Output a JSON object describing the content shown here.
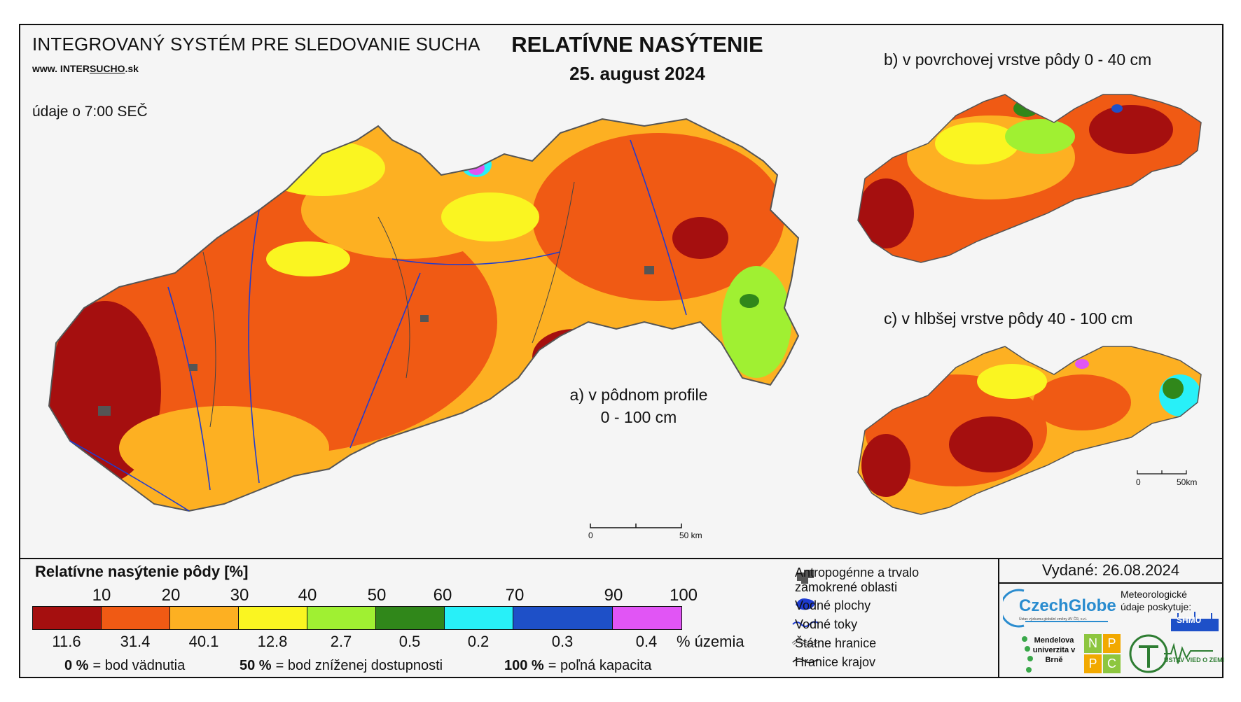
{
  "header": {
    "system_title": "INTEGROVANÝ SYSTÉM PRE SLEDOVANIE SUCHA",
    "website_prefix": "www. INTER",
    "website_mid": "SUCHO",
    "website_suffix": ".sk",
    "observation_time": "údaje o 7:00 SEČ",
    "main_title": "RELATÍVNE NASÝTENIE",
    "date": "25. august 2024"
  },
  "maps": {
    "a_label_line1": "a) v pôdnom profile",
    "a_label_line2": "0 - 100 cm",
    "b_label": "b) v povrchovej vrstve pôdy 0 - 40 cm",
    "c_label": "c) v hlbšej vrstve pôdy 40 - 100 cm",
    "scale_main": {
      "zero": "0",
      "fifty": "50 km"
    },
    "scale_small": {
      "zero": "0",
      "fifty": "50km"
    }
  },
  "legend": {
    "title": "Relatívne nasýtenie pôdy [%]",
    "ticks": [
      "10",
      "20",
      "30",
      "40",
      "50",
      "60",
      "70",
      "90",
      "100"
    ],
    "classes": [
      {
        "color": "#a50f0f",
        "percent": "11.6"
      },
      {
        "color": "#f05a14",
        "percent": "31.4"
      },
      {
        "color": "#fdb022",
        "percent": "40.1"
      },
      {
        "color": "#faf521",
        "percent": "12.8"
      },
      {
        "color": "#a0f032",
        "percent": "2.7"
      },
      {
        "color": "#30871a",
        "percent": "0.5"
      },
      {
        "color": "#28f0f8",
        "percent": "0.2"
      },
      {
        "color": "#1e50c8",
        "percent": "0.3"
      },
      {
        "color": "#e155f5",
        "percent": "0.4"
      }
    ],
    "percent_unit": "% územia",
    "def1_value": "0 %",
    "def1_text": "= bod vädnutia",
    "def2_value": "50 %",
    "def2_text": "= bod zníženej dostupnosti",
    "def3_value": "100 %",
    "def3_text": "= poľná kapacita"
  },
  "symbols": {
    "anthropogenic": "Antropogénne a trvalo zamokrené oblasti",
    "water_bodies": "Vodné plochy",
    "rivers": "Vodné toky",
    "state_border": "Štátne hranice",
    "region_border": "Hranice krajov"
  },
  "issuer": {
    "issued": "Vydané: 26.08.2024",
    "czechglobe": "CzechGlobe",
    "czechglobe_sub": "Ústav výzkumu globální změny AV ČR, v.v.i.",
    "met_data": "Meteorologické údaje poskytuje:",
    "shmu": "SHMÚ",
    "mendel": "Mendelova univerzita v Brně",
    "nppc": [
      "N",
      "P",
      "P",
      "C"
    ],
    "uvz": "ÚSTAV VIED O ZEMI"
  }
}
